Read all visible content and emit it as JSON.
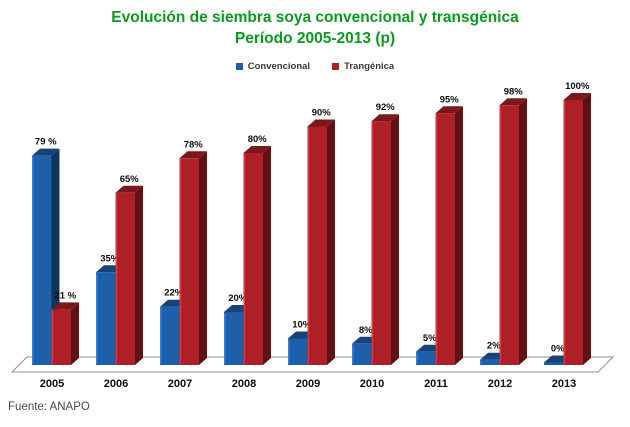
{
  "title": {
    "line1": "Evolución de siembra soya convencional y transgénica",
    "line2": "Período 2005-2013 (p)",
    "color": "#0a9a20"
  },
  "legend": [
    {
      "label": "Convencional",
      "color": "#1F5EA8"
    },
    {
      "label": "Trangénica",
      "color": "#AC2026"
    }
  ],
  "source": "Fuente: ANAPO",
  "chart_data": {
    "type": "bar",
    "bar_style": "3d",
    "title": "Evolución de siembra soya convencional y transgénica Período 2005-2013 (p)",
    "categories": [
      "2005",
      "2006",
      "2007",
      "2008",
      "2009",
      "2010",
      "2011",
      "2012",
      "2013"
    ],
    "series": [
      {
        "name": "Convencional",
        "color": "#1F5EA8",
        "values": [
          79,
          35,
          22,
          20,
          10,
          8,
          5,
          2,
          0
        ],
        "data_labels": [
          "79 %",
          "35%",
          "22%",
          "20%",
          "10%",
          "8%",
          "5%",
          "2%",
          "0%"
        ]
      },
      {
        "name": "Trangénica",
        "color": "#AC2026",
        "values": [
          21,
          65,
          78,
          80,
          90,
          92,
          95,
          98,
          100
        ],
        "data_labels": [
          "21 %",
          "65%",
          "78%",
          "80%",
          "90%",
          "92%",
          "95%",
          "98%",
          "100%"
        ]
      }
    ],
    "xlabel": "",
    "ylabel": "",
    "ylim": [
      0,
      100
    ],
    "value_label_suffix": "%",
    "grid": false,
    "legend_position": "top",
    "floor_color": "#ffffff",
    "floor_edge_color": "#8f8f8f"
  }
}
